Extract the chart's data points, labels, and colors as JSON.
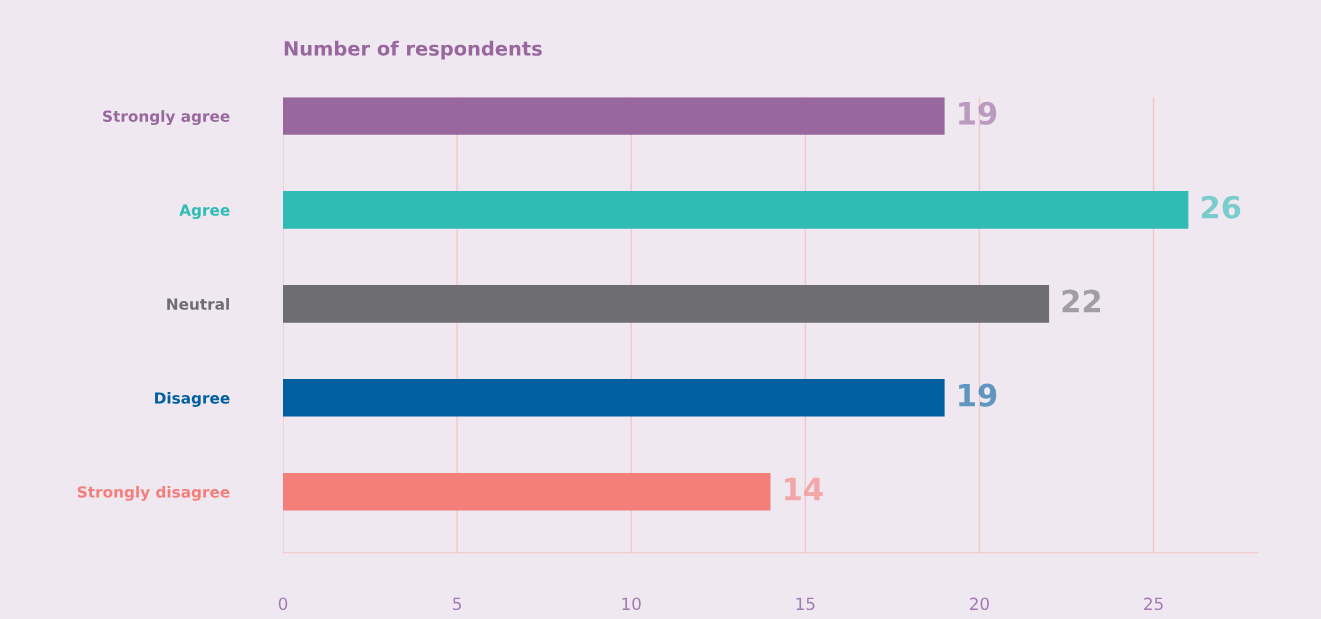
{
  "chart_data": {
    "type": "bar",
    "orientation": "horizontal",
    "title": "Number of respondents",
    "categories": [
      "Strongly agree",
      "Agree",
      "Neutral",
      "Disagree",
      "Strongly disagree"
    ],
    "values": [
      19,
      26,
      22,
      19,
      14
    ],
    "colors": [
      "#98679e",
      "#2ebcb4",
      "#6d6d72",
      "#005f9e",
      "#f47e7a"
    ],
    "xlim": [
      0,
      28
    ],
    "xticks": [
      0,
      5,
      10,
      15,
      20,
      25
    ],
    "grid": "x",
    "data_labels": true
  }
}
